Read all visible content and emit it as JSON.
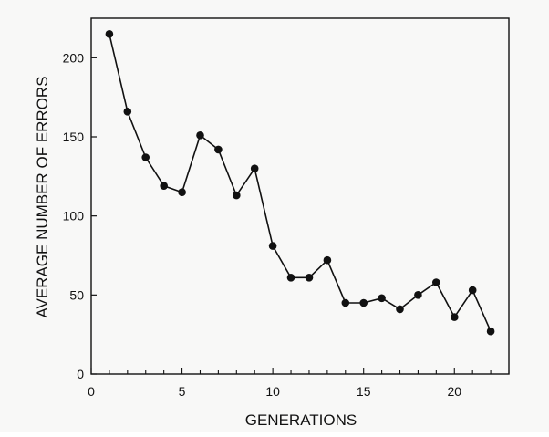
{
  "chart_data": {
    "type": "line",
    "title": "",
    "xlabel": "GENERATIONS",
    "ylabel": "AVERAGE NUMBER OF ERRORS",
    "xlim": [
      0,
      23
    ],
    "ylim": [
      0,
      225
    ],
    "x_ticks": [
      0,
      5,
      10,
      15,
      20
    ],
    "y_ticks": [
      0,
      50,
      100,
      150,
      200
    ],
    "grid": false,
    "legend": "none",
    "colors": {
      "background": "#f8f8f7",
      "line": "#111111",
      "marker": "#111111",
      "axis": "#111111"
    },
    "series": [
      {
        "x": [
          1,
          2,
          3,
          4,
          5,
          6,
          7,
          8,
          9,
          10,
          11,
          12,
          13,
          14,
          15,
          16,
          17,
          18,
          19,
          20,
          21,
          22
        ],
        "values": [
          215,
          166,
          137,
          119,
          115,
          151,
          142,
          113,
          130,
          81,
          61,
          61,
          72,
          45,
          45,
          48,
          41,
          50,
          58,
          36,
          53,
          27
        ]
      }
    ]
  }
}
